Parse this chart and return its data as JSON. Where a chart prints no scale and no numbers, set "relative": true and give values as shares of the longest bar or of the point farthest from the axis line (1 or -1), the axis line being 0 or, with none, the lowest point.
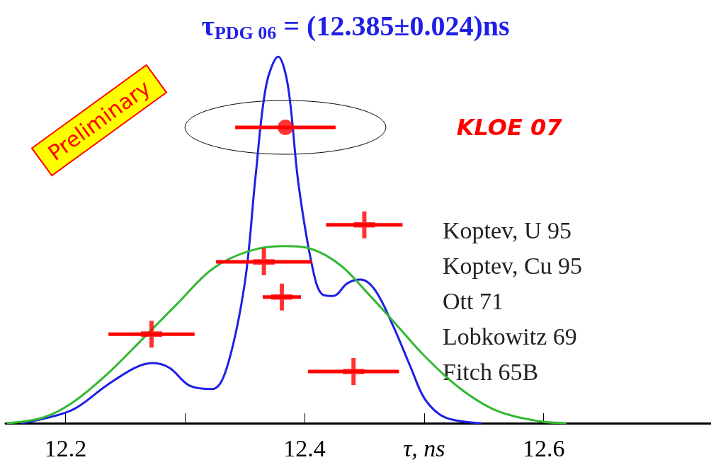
{
  "chart_data": {
    "type": "line",
    "title": "τ$_{PDG 06}$ = (12.385±0.024)ns",
    "xlabel": "τ, ns",
    "relative": true,
    "xlim": [
      12.15,
      12.74
    ],
    "xticks": [
      12.2,
      {
        "value": 12.3,
        "label": null
      },
      12.4,
      {
        "value": 12.5,
        "label": null
      },
      12.6
    ],
    "annotations": [
      "Koptev, U 95",
      "Koptev, Cu 95",
      "Ott 71",
      "Lobkowitz 69",
      "Fitch 65B",
      "Preliminary"
    ],
    "series": [
      {
        "color": "#1f1fe6",
        "x": [
          12.163,
          12.205,
          12.234,
          12.258,
          12.273,
          12.287,
          12.304,
          12.323,
          12.335,
          12.35,
          12.359,
          12.368,
          12.378,
          12.386,
          12.395,
          12.407,
          12.415,
          12.424,
          12.436,
          12.447,
          12.459,
          12.474,
          12.489,
          12.501,
          12.518,
          12.548
        ],
        "values": [
          0,
          0.035,
          0.102,
          0.151,
          0.164,
          0.151,
          0.102,
          0.093,
          0.151,
          0.382,
          0.672,
          0.923,
          1,
          0.923,
          0.651,
          0.419,
          0.351,
          0.347,
          0.382,
          0.392,
          0.363,
          0.266,
          0.151,
          0.064,
          0.015,
          0
        ]
      },
      {
        "color": "#33b833",
        "x": [
          12.151,
          12.181,
          12.205,
          12.234,
          12.264,
          12.293,
          12.323,
          12.353,
          12.382,
          12.406,
          12.43,
          12.453,
          12.477,
          12.501,
          12.53,
          12.56,
          12.595,
          12.619
        ],
        "values": [
          0,
          0.015,
          0.054,
          0.131,
          0.228,
          0.324,
          0.421,
          0.469,
          0.483,
          0.475,
          0.431,
          0.354,
          0.268,
          0.181,
          0.095,
          0.035,
          0.006,
          0
        ]
      },
      {
        "type": "scatter",
        "name": "KLOE 07",
        "color": "#ff0000",
        "marker": "circle",
        "x": [
          12.384
        ],
        "values": [
          0.807
        ],
        "xerrors": [
          0.042
        ]
      },
      {
        "type": "scatter",
        "color": "#ff0000",
        "marker": "cross",
        "x": [
          12.45,
          12.366,
          12.381,
          12.272,
          12.441
        ],
        "values": [
          0.541,
          0.44,
          0.344,
          0.243,
          0.141
        ],
        "xerrors": [
          0.032,
          0.04,
          0.016,
          0.036,
          0.038
        ]
      }
    ]
  }
}
